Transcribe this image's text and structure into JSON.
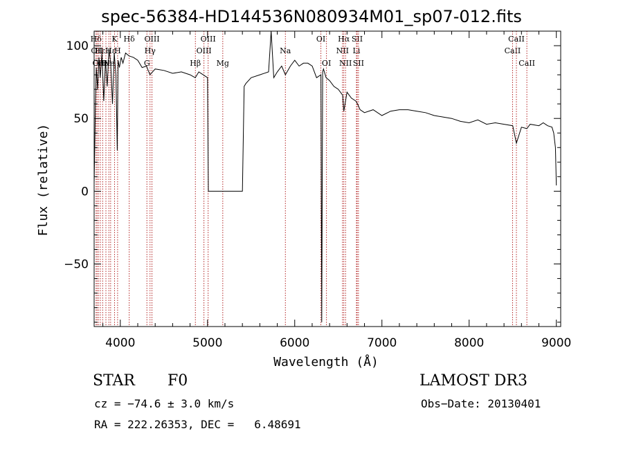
{
  "chart_data": {
    "type": "line",
    "title": "spec-56384-HD144536N080934M01_sp07-012.fits",
    "xlabel": "Wavelength (Å)",
    "ylabel": "Flux (relative)",
    "xlim": [
      3700,
      9050
    ],
    "ylim": [
      -93,
      110
    ],
    "xticks": [
      "4000",
      "5000",
      "6000",
      "7000",
      "8000",
      "9000"
    ],
    "yticks": [
      "100",
      "50",
      "0",
      "−50"
    ],
    "line_color": "#000000",
    "marker_color": "#b22222",
    "series": [
      {
        "x": [
          3700,
          3715,
          3725,
          3740,
          3755,
          3770,
          3790,
          3810,
          3830,
          3850,
          3870,
          3890,
          3910,
          3930,
          3950,
          3965,
          3975,
          3990,
          4010,
          4030,
          4060,
          4100,
          4150,
          4200,
          4250,
          4300,
          4340,
          4400,
          4500,
          4600,
          4700,
          4800,
          4860,
          4900,
          4950,
          5000,
          5010,
          5020,
          5100,
          5200,
          5300,
          5400,
          5420,
          5440,
          5500,
          5600,
          5700,
          5730,
          5760,
          5800,
          5850,
          5893,
          5950,
          6000,
          6050,
          6100,
          6150,
          6200,
          6250,
          6300,
          6310,
          6320,
          6330,
          6360,
          6400,
          6450,
          6500,
          6550,
          6563,
          6600,
          6650,
          6700,
          6720,
          6750,
          6800,
          6900,
          7000,
          7100,
          7200,
          7300,
          7400,
          7500,
          7600,
          7700,
          7800,
          7900,
          8000,
          8100,
          8200,
          8300,
          8400,
          8500,
          8542,
          8600,
          8662,
          8700,
          8800,
          8850,
          8900,
          8950,
          8970,
          8990,
          9000
        ],
        "y": [
          5,
          60,
          85,
          70,
          92,
          78,
          95,
          62,
          90,
          72,
          98,
          88,
          60,
          95,
          80,
          28,
          90,
          85,
          92,
          88,
          95,
          93,
          92,
          90,
          85,
          86,
          80,
          84,
          83,
          81,
          82,
          80,
          78,
          82,
          80,
          78,
          0,
          0,
          0,
          0,
          0,
          0,
          72,
          74,
          78,
          80,
          82,
          110,
          78,
          82,
          86,
          80,
          86,
          90,
          86,
          88,
          88,
          86,
          78,
          80,
          -90,
          82,
          84,
          78,
          76,
          72,
          70,
          66,
          55,
          68,
          64,
          62,
          60,
          56,
          54,
          56,
          52,
          55,
          56,
          56,
          55,
          54,
          52,
          51,
          50,
          48,
          47,
          49,
          46,
          47,
          46,
          45,
          33,
          44,
          43,
          46,
          45,
          47,
          45,
          44,
          40,
          30,
          4
        ]
      }
    ],
    "markers": [
      {
        "x": 3722,
        "row": 0,
        "label": "Hδ"
      },
      {
        "x": 3734,
        "row": 1,
        "label": "OII"
      },
      {
        "x": 3750,
        "row": 2,
        "label": "OII"
      },
      {
        "x": 3771,
        "row": 1,
        "label": "Hε"
      },
      {
        "x": 3798,
        "row": 2,
        "label": "Hε"
      },
      {
        "x": 3835,
        "row": 2,
        "label": "Hε"
      },
      {
        "x": 3869,
        "row": 2,
        "label": "Ne"
      },
      {
        "x": 3889,
        "row": 1,
        "label": "Hε"
      },
      {
        "x": 3934,
        "row": 0,
        "label": "K"
      },
      {
        "x": 3969,
        "row": 1,
        "label": "H"
      },
      {
        "x": 4102,
        "row": 0,
        "label": "Hδ"
      },
      {
        "x": 4305,
        "row": 2,
        "label": "G"
      },
      {
        "x": 4341,
        "row": 1,
        "label": "Hγ"
      },
      {
        "x": 4363,
        "row": 0,
        "label": "OIII"
      },
      {
        "x": 4861,
        "row": 2,
        "label": "Hβ"
      },
      {
        "x": 4959,
        "row": 1,
        "label": "OIII"
      },
      {
        "x": 5007,
        "row": 0,
        "label": "OIII"
      },
      {
        "x": 5175,
        "row": 2,
        "label": "Mg"
      },
      {
        "x": 5893,
        "row": 1,
        "label": "Na"
      },
      {
        "x": 6300,
        "row": 0,
        "label": "OI"
      },
      {
        "x": 6364,
        "row": 2,
        "label": "OI"
      },
      {
        "x": 6548,
        "row": 1,
        "label": "NII"
      },
      {
        "x": 6563,
        "row": 0,
        "label": "Hα"
      },
      {
        "x": 6583,
        "row": 2,
        "label": "NII"
      },
      {
        "x": 6708,
        "row": 1,
        "label": "Li"
      },
      {
        "x": 6716,
        "row": 0,
        "label": "SII"
      },
      {
        "x": 6731,
        "row": 2,
        "label": "SII"
      },
      {
        "x": 8498,
        "row": 1,
        "label": "CaII"
      },
      {
        "x": 8542,
        "row": 0,
        "label": "CaII"
      },
      {
        "x": 8662,
        "row": 2,
        "label": "CaII"
      }
    ]
  },
  "info": {
    "object_class": "STAR",
    "subclass": "F0",
    "survey": "LAMOST DR3",
    "redshift": "cz = −74.6 ± 3.0 km/s",
    "obs_date": "Obs−Date: 20130401",
    "coords": "RA = 222.26353, DEC =   6.48691"
  }
}
